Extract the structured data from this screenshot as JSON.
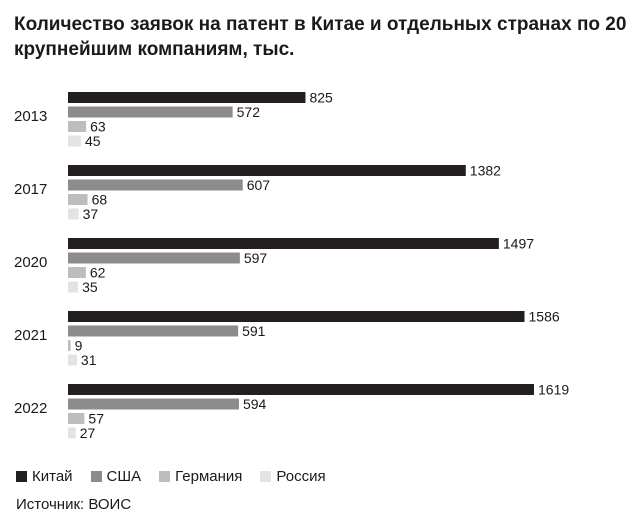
{
  "title": "Количество заявок на патент в Китае и отдельных странах по 20 крупнейшим компаниям, тыс.",
  "source": "Источник: ВОИС",
  "chart_data": {
    "type": "bar",
    "orientation": "horizontal",
    "categories": [
      "2013",
      "2017",
      "2020",
      "2021",
      "2022"
    ],
    "series": [
      {
        "name": "Китай",
        "color": "#231f20",
        "values": [
          825,
          1382,
          1497,
          1586,
          1619
        ]
      },
      {
        "name": "США",
        "color": "#8c8c8c",
        "values": [
          572,
          607,
          597,
          591,
          594
        ]
      },
      {
        "name": "Германия",
        "color": "#bdbdbd",
        "values": [
          63,
          68,
          62,
          9,
          57
        ]
      },
      {
        "name": "Россия",
        "color": "#e3e3e3",
        "values": [
          45,
          37,
          35,
          31,
          27
        ]
      }
    ],
    "xlim": [
      0,
      1700
    ],
    "grid": false,
    "legend_position": "bottom-left"
  }
}
